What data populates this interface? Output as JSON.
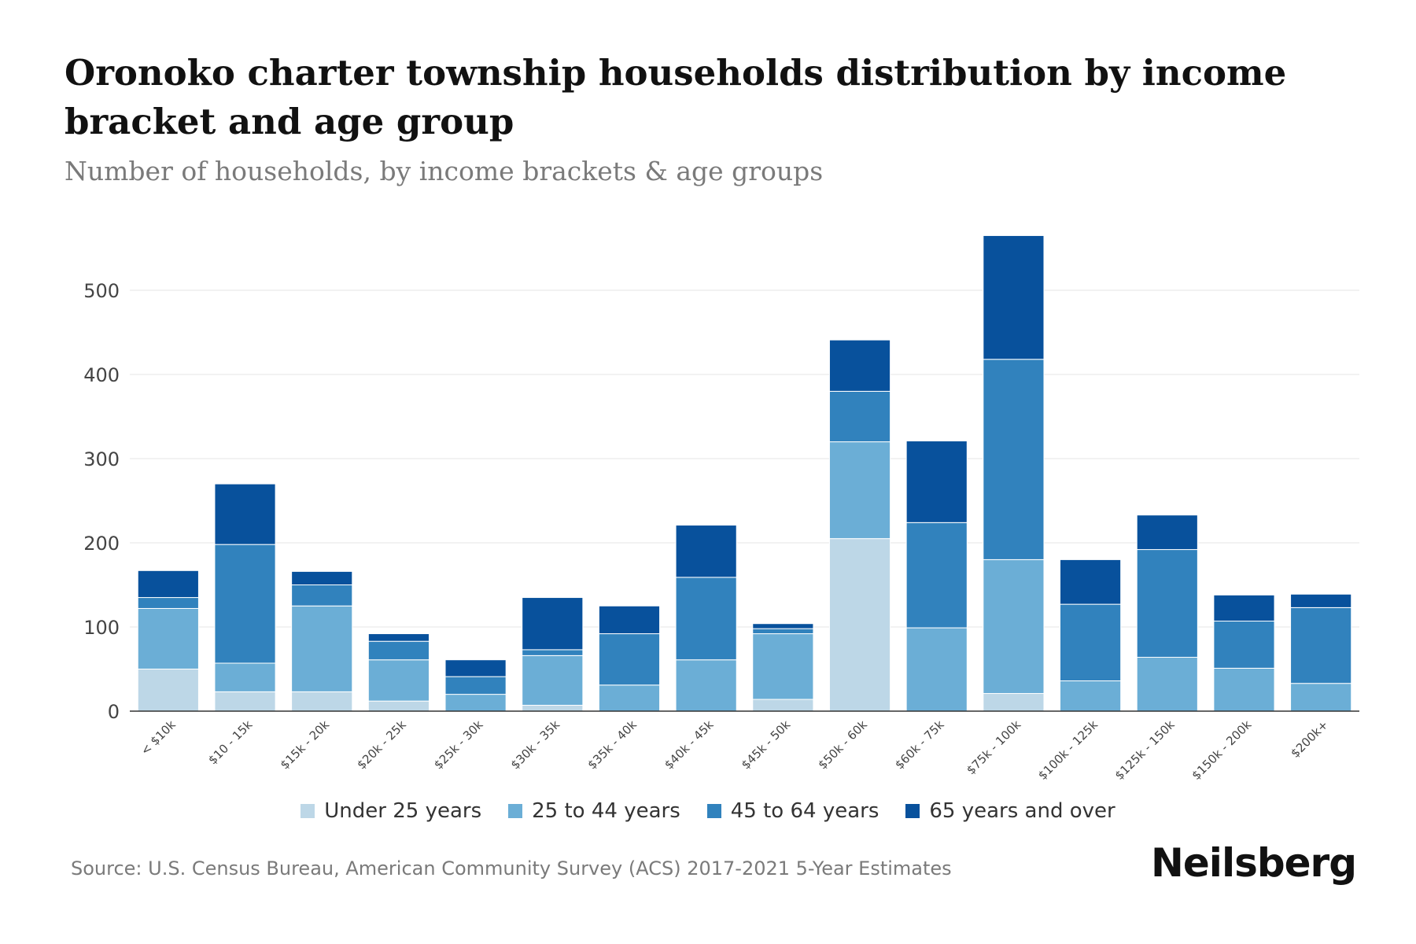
{
  "header": {
    "title": "Oronoko charter township households distribution by income bracket and age group",
    "subtitle": "Number of households, by income brackets & age groups"
  },
  "footer": {
    "source": "Source: U.S. Census Bureau, American Community Survey (ACS) 2017-2021 5-Year Estimates",
    "brand": "Neilsberg"
  },
  "colors": {
    "under_25": "#bdd7e7",
    "age_25_44": "#6baed6",
    "age_45_64": "#3182bd",
    "age_65_over": "#08519c"
  },
  "chart_data": {
    "type": "bar",
    "stacked": true,
    "title": "Oronoko charter township households distribution by income bracket and age group",
    "subtitle": "Number of households, by income brackets & age groups",
    "xlabel": "",
    "ylabel": "",
    "ylim": [
      0,
      570
    ],
    "yticks": [
      0,
      100,
      200,
      300,
      400,
      500
    ],
    "grid": true,
    "legend_position": "bottom",
    "categories": [
      "< $10k",
      "$10 - 15k",
      "$15k - 20k",
      "$20k - 25k",
      "$25k - 30k",
      "$30k - 35k",
      "$35k - 40k",
      "$40k - 45k",
      "$45k - 50k",
      "$50k - 60k",
      "$60k - 75k",
      "$75k - 100k",
      "$100k - 125k",
      "$125k - 150k",
      "$150k - 200k",
      "$200k+"
    ],
    "series": [
      {
        "name": "Under 25 years",
        "color": "#bdd7e7",
        "values": [
          50,
          23,
          23,
          12,
          0,
          7,
          0,
          0,
          14,
          205,
          0,
          21,
          0,
          0,
          0,
          0
        ]
      },
      {
        "name": "25 to 44 years",
        "color": "#6baed6",
        "values": [
          72,
          34,
          102,
          49,
          20,
          59,
          31,
          61,
          78,
          115,
          99,
          159,
          36,
          64,
          51,
          33
        ]
      },
      {
        "name": "45 to 64 years",
        "color": "#3182bd",
        "values": [
          13,
          141,
          25,
          22,
          21,
          7,
          61,
          98,
          6,
          60,
          125,
          238,
          91,
          128,
          56,
          90
        ]
      },
      {
        "name": "65 years and over",
        "color": "#08519c",
        "values": [
          32,
          72,
          16,
          9,
          20,
          62,
          33,
          62,
          6,
          61,
          97,
          147,
          53,
          41,
          31,
          16
        ]
      }
    ]
  }
}
